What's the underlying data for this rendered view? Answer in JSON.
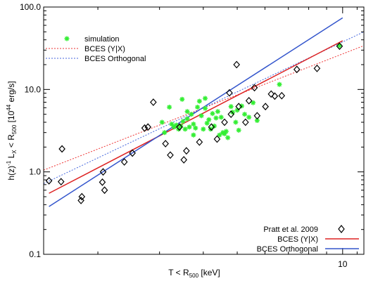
{
  "chart_data": {
    "type": "scatter",
    "xlabel": "T < R",
    "xlabel_sub": "500",
    "xlabel_unit": " [keV]",
    "ylabel": "h(z)",
    "ylabel_sup": "-1",
    "ylabel_mid": " L",
    "ylabel_x_sub": "X",
    "ylabel_mid2": " < R",
    "ylabel_r_sub": "500",
    "ylabel_unit_a": " [10",
    "ylabel_unit_sup": "44",
    "ylabel_unit_b": " erg/s]",
    "xscale": "log",
    "yscale": "log",
    "xlim": [
      1.4,
      11.5
    ],
    "ylim": [
      0.1,
      100
    ],
    "xtick_labels": [
      {
        "value": 10,
        "label": "10"
      }
    ],
    "ytick_labels": [
      {
        "value": 0.1,
        "label": "0.1"
      },
      {
        "value": 1,
        "label": "1.0"
      },
      {
        "value": 10,
        "label": "10.0"
      },
      {
        "value": 100,
        "label": "100.0"
      }
    ],
    "legend_top": [
      {
        "label": "simulation",
        "type": "marker",
        "color": "#33ee33"
      },
      {
        "label": "BCES (Y|X)",
        "type": "dotted",
        "color": "#ee3333"
      },
      {
        "label": "BCES Orthogonal",
        "type": "dotted",
        "color": "#4466dd"
      }
    ],
    "legend_bottom": [
      {
        "label": "Pratt et al. 2009",
        "type": "diamond",
        "color": "#000000"
      },
      {
        "label": "BCES (Y|X)",
        "type": "solid",
        "color": "#dd2222"
      },
      {
        "label": "BCES Orthogonal",
        "type": "solid",
        "color": "#3355cc"
      }
    ],
    "series": [
      {
        "name": "simulation",
        "marker": "star",
        "color": "#33ee33",
        "points": [
          [
            3.05,
            4.0
          ],
          [
            3.1,
            3.0
          ],
          [
            3.2,
            6.1
          ],
          [
            3.3,
            3.5
          ],
          [
            3.35,
            3.7
          ],
          [
            3.4,
            3.3
          ],
          [
            3.45,
            3.6
          ],
          [
            3.5,
            4.1
          ],
          [
            3.55,
            3.3
          ],
          [
            3.6,
            4.4
          ],
          [
            3.65,
            3.5
          ],
          [
            3.7,
            5.0
          ],
          [
            3.75,
            3.8
          ],
          [
            3.8,
            3.4
          ],
          [
            3.85,
            6.1
          ],
          [
            3.9,
            7.2
          ],
          [
            3.95,
            4.8
          ],
          [
            4.0,
            3.3
          ],
          [
            4.05,
            5.9
          ],
          [
            4.1,
            3.9
          ],
          [
            4.15,
            4.3
          ],
          [
            4.2,
            3.3
          ],
          [
            4.25,
            5.1
          ],
          [
            4.3,
            3.6
          ],
          [
            4.4,
            5.4
          ],
          [
            4.5,
            4.6
          ],
          [
            4.55,
            3.0
          ],
          [
            4.6,
            2.9
          ],
          [
            4.65,
            3.1
          ],
          [
            4.7,
            2.6
          ],
          [
            4.8,
            6.2
          ],
          [
            4.85,
            5.3
          ],
          [
            4.95,
            4.0
          ],
          [
            5.0,
            5.6
          ],
          [
            5.05,
            3.2
          ],
          [
            5.15,
            6.3
          ],
          [
            5.25,
            5.0
          ],
          [
            5.4,
            4.6
          ],
          [
            5.55,
            6.9
          ],
          [
            5.7,
            4.2
          ],
          [
            3.48,
            7.6
          ],
          [
            4.05,
            7.8
          ],
          [
            3.25,
            3.8
          ],
          [
            3.6,
            5.4
          ],
          [
            4.35,
            4.5
          ],
          [
            4.45,
            2.8
          ],
          [
            3.75,
            2.8
          ],
          [
            6.6,
            11.5
          ],
          [
            9.8,
            34.0
          ]
        ]
      },
      {
        "name": "Pratt et al. 2009",
        "marker": "diamond",
        "color": "#000000",
        "points": [
          [
            1.45,
            0.78
          ],
          [
            1.58,
            1.9
          ],
          [
            1.57,
            0.76
          ],
          [
            1.8,
            0.5
          ],
          [
            1.79,
            0.45
          ],
          [
            2.07,
            1.0
          ],
          [
            2.06,
            0.75
          ],
          [
            2.09,
            0.6
          ],
          [
            2.38,
            1.32
          ],
          [
            2.51,
            1.69
          ],
          [
            2.72,
            3.4
          ],
          [
            2.78,
            3.5
          ],
          [
            2.88,
            7.0
          ],
          [
            3.12,
            2.2
          ],
          [
            3.22,
            1.6
          ],
          [
            3.42,
            3.5
          ],
          [
            3.52,
            1.4
          ],
          [
            3.58,
            1.8
          ],
          [
            3.9,
            2.3
          ],
          [
            4.22,
            3.5
          ],
          [
            4.38,
            2.5
          ],
          [
            4.6,
            4.0
          ],
          [
            4.75,
            9.1
          ],
          [
            4.8,
            5.0
          ],
          [
            4.98,
            20.0
          ],
          [
            5.05,
            6.2
          ],
          [
            5.28,
            4.0
          ],
          [
            5.4,
            7.3
          ],
          [
            5.6,
            10.5
          ],
          [
            5.7,
            4.8
          ],
          [
            6.02,
            6.2
          ],
          [
            6.25,
            8.8
          ],
          [
            6.4,
            8.3
          ],
          [
            6.7,
            8.4
          ],
          [
            7.4,
            17.5
          ],
          [
            8.45,
            18.0
          ],
          [
            9.8,
            33.5
          ]
        ]
      }
    ],
    "fit_lines": [
      {
        "name": "BCES (Y|X)",
        "style": "dotted",
        "color": "#ee3333",
        "points": [
          [
            1.4,
            1.05
          ],
          [
            11.5,
            34.0
          ]
        ]
      },
      {
        "name": "BCES Orthogonal",
        "style": "dotted",
        "color": "#4466dd",
        "points": [
          [
            1.4,
            0.72
          ],
          [
            11.5,
            50.0
          ]
        ]
      },
      {
        "name": "BCES (Y|X)",
        "style": "solid",
        "color": "#dd2222",
        "points": [
          [
            1.45,
            0.55
          ],
          [
            10.0,
            39.0
          ]
        ]
      },
      {
        "name": "BCES Orthogonal",
        "style": "solid",
        "color": "#3355cc",
        "points": [
          [
            1.45,
            0.38
          ],
          [
            10.0,
            74.0
          ]
        ]
      }
    ]
  }
}
